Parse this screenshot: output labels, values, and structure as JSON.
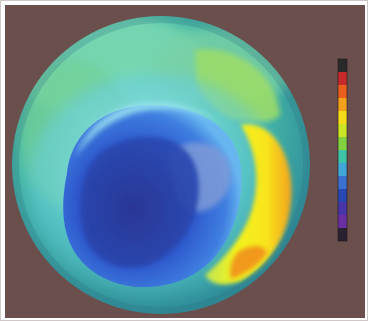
{
  "image": {
    "background_color": "#6b4f4d",
    "frame_color": "#cfc8c6"
  },
  "globe": {
    "description_colors": {
      "ocean_green": "#5fc07a",
      "mid_cyan": "#48b8cf",
      "light_cyan": "#8ed9ea",
      "deep_blue": "#1f4fbf",
      "core_blue": "#2a3fa3",
      "yellow_band": "#f6f51f",
      "orange_edge": "#f08a1e"
    }
  },
  "color_scale": {
    "swatches": [
      "#2a2a2a",
      "#c62a2a",
      "#ea5f1e",
      "#f3a01b",
      "#f4dc1b",
      "#cde426",
      "#84d13f",
      "#3fc3a6",
      "#43a6d9",
      "#3b6fd0",
      "#2747b5",
      "#4a35a8",
      "#6a2fa2",
      "#2a2130"
    ]
  }
}
